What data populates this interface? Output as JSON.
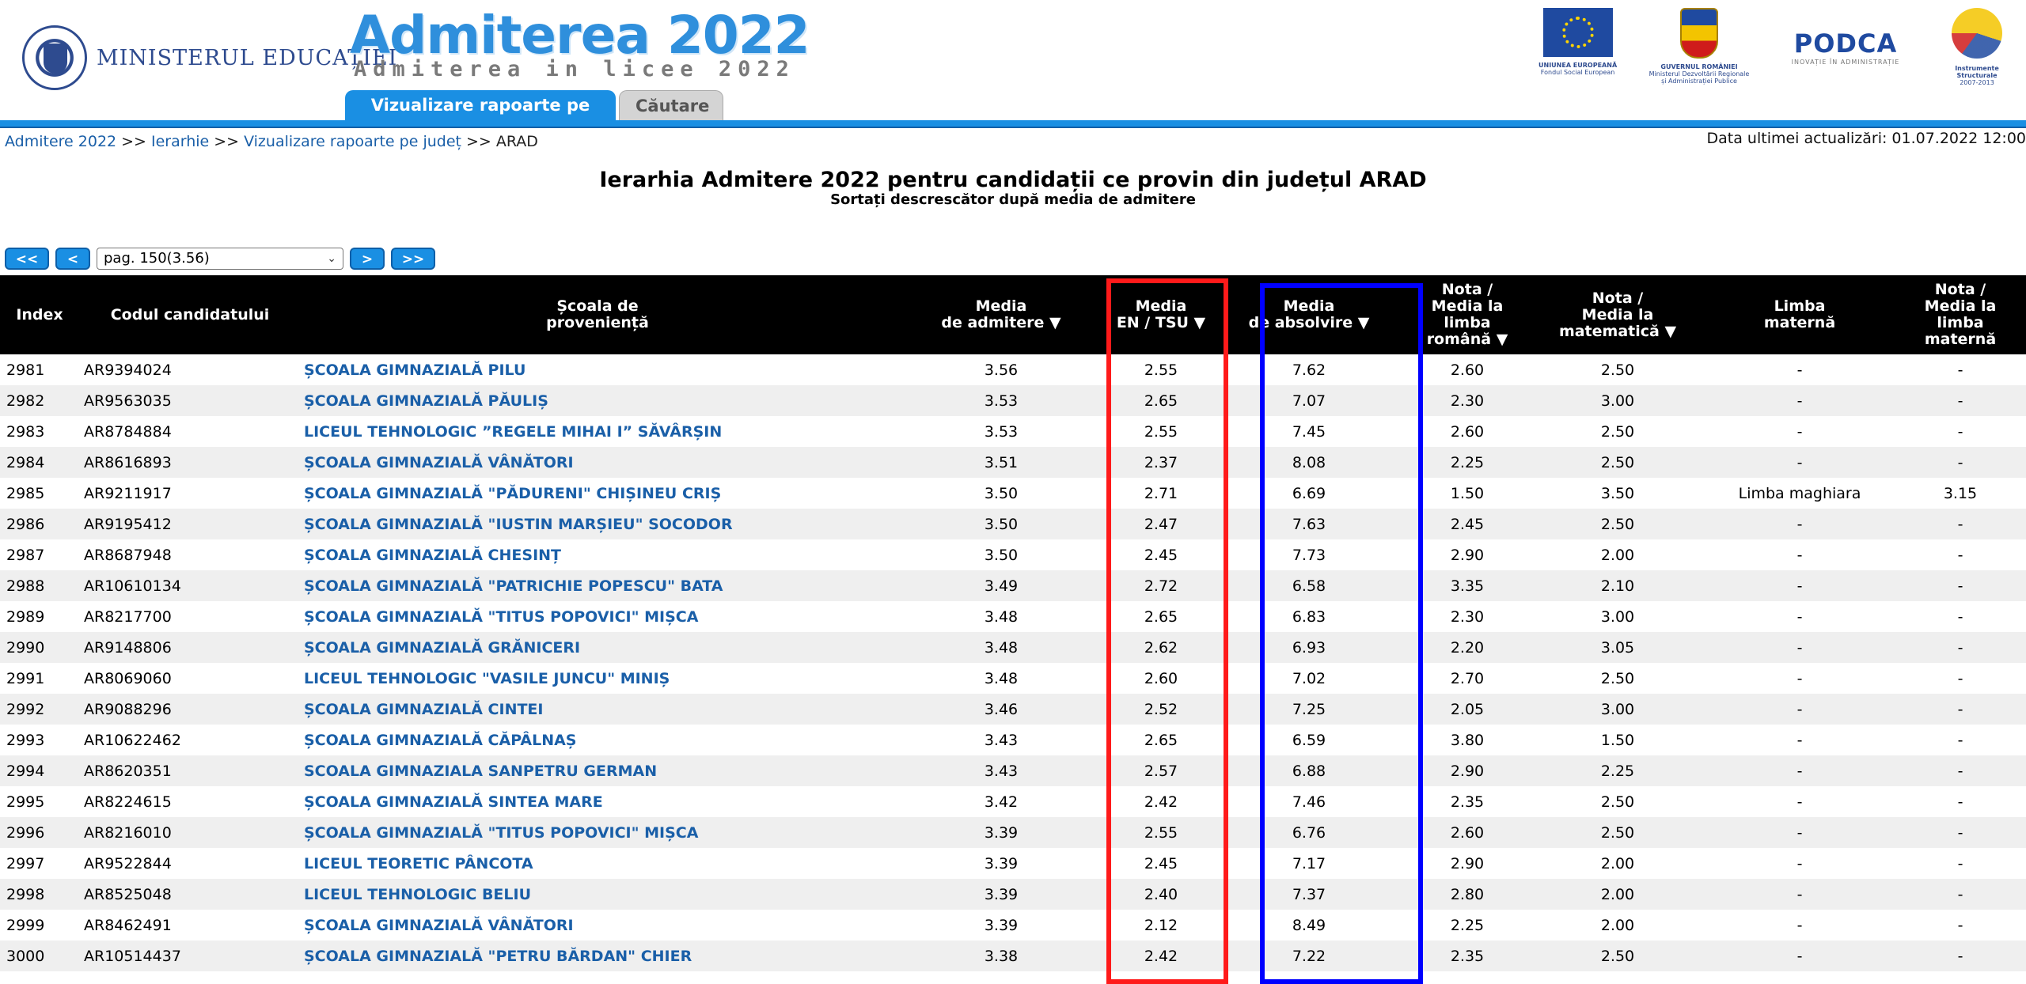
{
  "header": {
    "ministry": "MINISTERUL EDUCAȚIEI",
    "site_title": "Admiterea 2022",
    "site_subtitle": "Admiterea in licee 2022",
    "tabs": [
      {
        "label": "Vizualizare rapoarte pe județ",
        "active": true
      },
      {
        "label": "Căutare",
        "active": false
      }
    ],
    "partners": [
      {
        "name": "UNIUNEA EUROPEANĂ",
        "sub": "Fondul Social European"
      },
      {
        "name": "GUVERNUL ROMÂNIEI",
        "sub": "Ministerul Dezvoltării Regionale și Administrației Publice"
      },
      {
        "name": "PODCA",
        "sub": "INOVAȚIE ÎN ADMINISTRAȚIE"
      },
      {
        "name": "Instrumente Structurale",
        "sub": "2007-2013"
      }
    ]
  },
  "breadcrumb": {
    "items": [
      "Admitere 2022",
      "Ierarhie",
      "Vizualizare rapoarte pe județ"
    ],
    "current": "ARAD",
    "separator": ">>"
  },
  "last_update": "Data ultimei actualizări: 01.07.2022 12:00",
  "page": {
    "title": "Ierarhia Admitere 2022 pentru candidații ce provin din județul ARAD",
    "subtitle": "Sortați descrescător după media de admitere"
  },
  "pager": {
    "first": "<<",
    "prev": "<",
    "selected": "pag. 150(3.56)",
    "next": ">",
    "last": ">>"
  },
  "table": {
    "columns": [
      {
        "line1": "Index",
        "line2": "",
        "line3": "",
        "line4": ""
      },
      {
        "line1": "Codul candidatului",
        "line2": "",
        "line3": "",
        "line4": ""
      },
      {
        "line1": "Școala de",
        "line2": "proveniență",
        "line3": "",
        "line4": ""
      },
      {
        "line1": "Media",
        "line2": "de admitere ▼",
        "line3": "",
        "line4": ""
      },
      {
        "line1": "Media",
        "line2": "EN / TSU ▼",
        "line3": "",
        "line4": ""
      },
      {
        "line1": "Media",
        "line2": "de absolvire ▼",
        "line3": "",
        "line4": ""
      },
      {
        "line1": "Nota /",
        "line2": "Media la",
        "line3": "limba",
        "line4": "română ▼"
      },
      {
        "line1": "Nota /",
        "line2": "Media la",
        "line3": "matematică ▼",
        "line4": ""
      },
      {
        "line1": "Limba",
        "line2": "maternă",
        "line3": "",
        "line4": ""
      },
      {
        "line1": "Nota /",
        "line2": "Media la",
        "line3": "limba",
        "line4": "maternă"
      }
    ],
    "rows": [
      [
        "2981",
        "AR9394024",
        "ȘCOALA GIMNAZIALĂ PILU",
        "3.56",
        "2.55",
        "7.62",
        "2.60",
        "2.50",
        "-",
        "-"
      ],
      [
        "2982",
        "AR9563035",
        "ȘCOALA GIMNAZIALĂ PĂULIȘ",
        "3.53",
        "2.65",
        "7.07",
        "2.30",
        "3.00",
        "-",
        "-"
      ],
      [
        "2983",
        "AR8784884",
        "LICEUL TEHNOLOGIC ”REGELE MIHAI I” SĂVÂRȘIN",
        "3.53",
        "2.55",
        "7.45",
        "2.60",
        "2.50",
        "-",
        "-"
      ],
      [
        "2984",
        "AR8616893",
        "ȘCOALA GIMNAZIALĂ VÂNĂTORI",
        "3.51",
        "2.37",
        "8.08",
        "2.25",
        "2.50",
        "-",
        "-"
      ],
      [
        "2985",
        "AR9211917",
        "ȘCOALA GIMNAZIALĂ \"PĂDURENI\" CHIȘINEU CRIȘ",
        "3.50",
        "2.71",
        "6.69",
        "1.50",
        "3.50",
        "Limba maghiara",
        "3.15"
      ],
      [
        "2986",
        "AR9195412",
        "ȘCOALA GIMNAZIALĂ \"IUSTIN MARȘIEU\" SOCODOR",
        "3.50",
        "2.47",
        "7.63",
        "2.45",
        "2.50",
        "-",
        "-"
      ],
      [
        "2987",
        "AR8687948",
        "ȘCOALA GIMNAZIALĂ CHESINȚ",
        "3.50",
        "2.45",
        "7.73",
        "2.90",
        "2.00",
        "-",
        "-"
      ],
      [
        "2988",
        "AR10610134",
        "ȘCOALA GIMNAZIALĂ \"PATRICHIE POPESCU\" BATA",
        "3.49",
        "2.72",
        "6.58",
        "3.35",
        "2.10",
        "-",
        "-"
      ],
      [
        "2989",
        "AR8217700",
        "ȘCOALA GIMNAZIALĂ \"TITUS POPOVICI\" MIȘCA",
        "3.48",
        "2.65",
        "6.83",
        "2.30",
        "3.00",
        "-",
        "-"
      ],
      [
        "2990",
        "AR9148806",
        "ȘCOALA GIMNAZIALĂ GRĂNICERI",
        "3.48",
        "2.62",
        "6.93",
        "2.20",
        "3.05",
        "-",
        "-"
      ],
      [
        "2991",
        "AR8069060",
        "LICEUL TEHNOLOGIC \"VASILE JUNCU\" MINIȘ",
        "3.48",
        "2.60",
        "7.02",
        "2.70",
        "2.50",
        "-",
        "-"
      ],
      [
        "2992",
        "AR9088296",
        "ȘCOALA GIMNAZIALĂ CINTEI",
        "3.46",
        "2.52",
        "7.25",
        "2.05",
        "3.00",
        "-",
        "-"
      ],
      [
        "2993",
        "AR10622462",
        "ȘCOALA GIMNAZIALĂ CĂPÂLNAȘ",
        "3.43",
        "2.65",
        "6.59",
        "3.80",
        "1.50",
        "-",
        "-"
      ],
      [
        "2994",
        "AR8620351",
        "SCOALA GIMNAZIALA SANPETRU GERMAN",
        "3.43",
        "2.57",
        "6.88",
        "2.90",
        "2.25",
        "-",
        "-"
      ],
      [
        "2995",
        "AR8224615",
        "ȘCOALA GIMNAZIALĂ SINTEA MARE",
        "3.42",
        "2.42",
        "7.46",
        "2.35",
        "2.50",
        "-",
        "-"
      ],
      [
        "2996",
        "AR8216010",
        "ȘCOALA GIMNAZIALĂ \"TITUS POPOVICI\" MIȘCA",
        "3.39",
        "2.55",
        "6.76",
        "2.60",
        "2.50",
        "-",
        "-"
      ],
      [
        "2997",
        "AR9522844",
        "LICEUL TEORETIC PÂNCOTA",
        "3.39",
        "2.45",
        "7.17",
        "2.90",
        "2.00",
        "-",
        "-"
      ],
      [
        "2998",
        "AR8525048",
        "LICEUL TEHNOLOGIC BELIU",
        "3.39",
        "2.40",
        "7.37",
        "2.80",
        "2.00",
        "-",
        "-"
      ],
      [
        "2999",
        "AR8462491",
        "ȘCOALA GIMNAZIALĂ VÂNĂTORI",
        "3.39",
        "2.12",
        "8.49",
        "2.25",
        "2.00",
        "-",
        "-"
      ],
      [
        "3000",
        "AR10514437",
        "ȘCOALA GIMNAZIALĂ \"PETRU BĂRDAN\" CHIER",
        "3.38",
        "2.42",
        "7.22",
        "2.35",
        "2.50",
        "-",
        "-"
      ]
    ]
  },
  "annotations": {
    "red_box_color": "#ff1a1a",
    "blue_box_color": "#0000ff"
  }
}
